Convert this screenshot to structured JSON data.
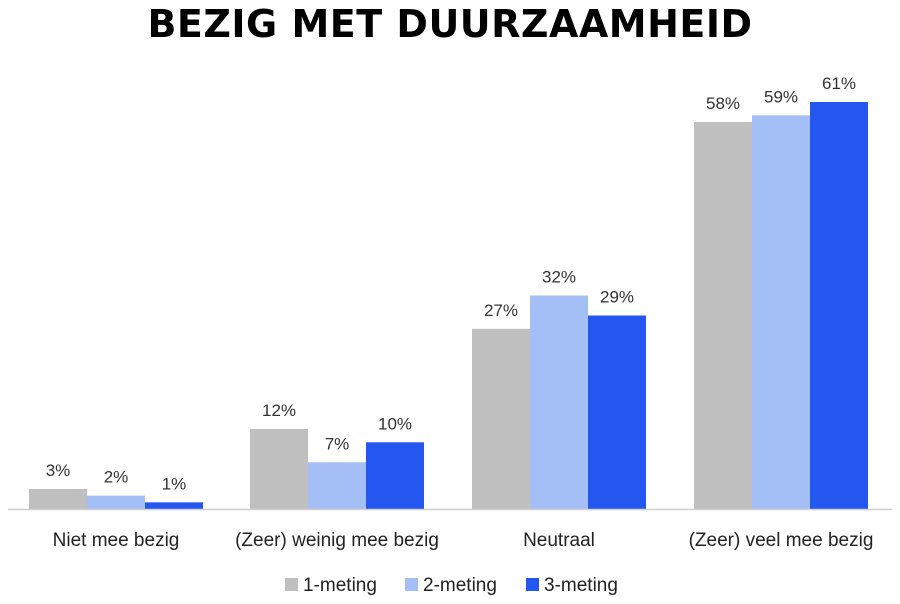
{
  "chart_data": {
    "type": "bar",
    "title": "BEZIG MET DUURZAAMHEID",
    "categories": [
      "Niet mee bezig",
      "(Zeer) weinig mee bezig",
      "Neutraal",
      "(Zeer) veel mee bezig"
    ],
    "series": [
      {
        "name": "1-meting",
        "color": "#bfbfbf",
        "values": [
          3,
          12,
          27,
          58
        ]
      },
      {
        "name": "2-meting",
        "color": "#a4bff5",
        "values": [
          2,
          7,
          32,
          59
        ]
      },
      {
        "name": "3-meting",
        "color": "#2457f0",
        "values": [
          1,
          10,
          29,
          61
        ]
      }
    ],
    "value_suffix": "%",
    "ylim": [
      0,
      61
    ],
    "grid": false,
    "legend_position": "bottom"
  }
}
